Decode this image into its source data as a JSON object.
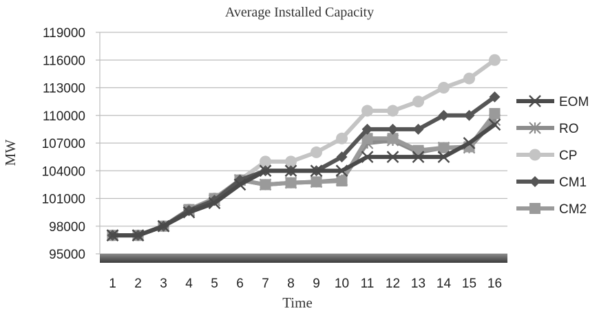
{
  "chart_data": {
    "type": "line",
    "title": "Average Installed Capacity",
    "xlabel": "Time",
    "ylabel": "MW",
    "x": [
      1,
      2,
      3,
      4,
      5,
      6,
      7,
      8,
      9,
      10,
      11,
      12,
      13,
      14,
      15,
      16
    ],
    "ylim": [
      95000,
      119000
    ],
    "yticks": [
      95000,
      98000,
      101000,
      104000,
      107000,
      110000,
      113000,
      116000,
      119000
    ],
    "grid": true,
    "legend_position": "right",
    "series": [
      {
        "name": "EOM",
        "color": "#4a4a4a",
        "marker": "x",
        "values": [
          97000,
          97000,
          98000,
          99500,
          100500,
          102500,
          104000,
          104000,
          104000,
          104000,
          105500,
          105500,
          105500,
          105500,
          107000,
          109000
        ]
      },
      {
        "name": "RO",
        "color": "#8c8c8c",
        "marker": "asterisk",
        "values": [
          97000,
          97000,
          98000,
          99700,
          100800,
          103000,
          102500,
          102700,
          102800,
          103000,
          107000,
          107300,
          106000,
          106500,
          106500,
          109500
        ]
      },
      {
        "name": "CP",
        "color": "#c4c4c4",
        "marker": "circle",
        "values": [
          97000,
          97000,
          98000,
          99800,
          101000,
          103000,
          105000,
          105000,
          106000,
          107500,
          110500,
          110500,
          111500,
          113000,
          114000,
          116000
        ]
      },
      {
        "name": "CM1",
        "color": "#555555",
        "marker": "diamond",
        "values": [
          97000,
          97000,
          98000,
          99700,
          100800,
          103000,
          104000,
          104000,
          104000,
          105500,
          108500,
          108500,
          108500,
          110000,
          110000,
          112000
        ]
      },
      {
        "name": "CM2",
        "color": "#9a9a9a",
        "marker": "square",
        "values": [
          97000,
          97000,
          98000,
          99800,
          101000,
          103000,
          102500,
          102700,
          102800,
          102900,
          107500,
          107500,
          106200,
          106500,
          106600,
          110200
        ]
      }
    ]
  }
}
